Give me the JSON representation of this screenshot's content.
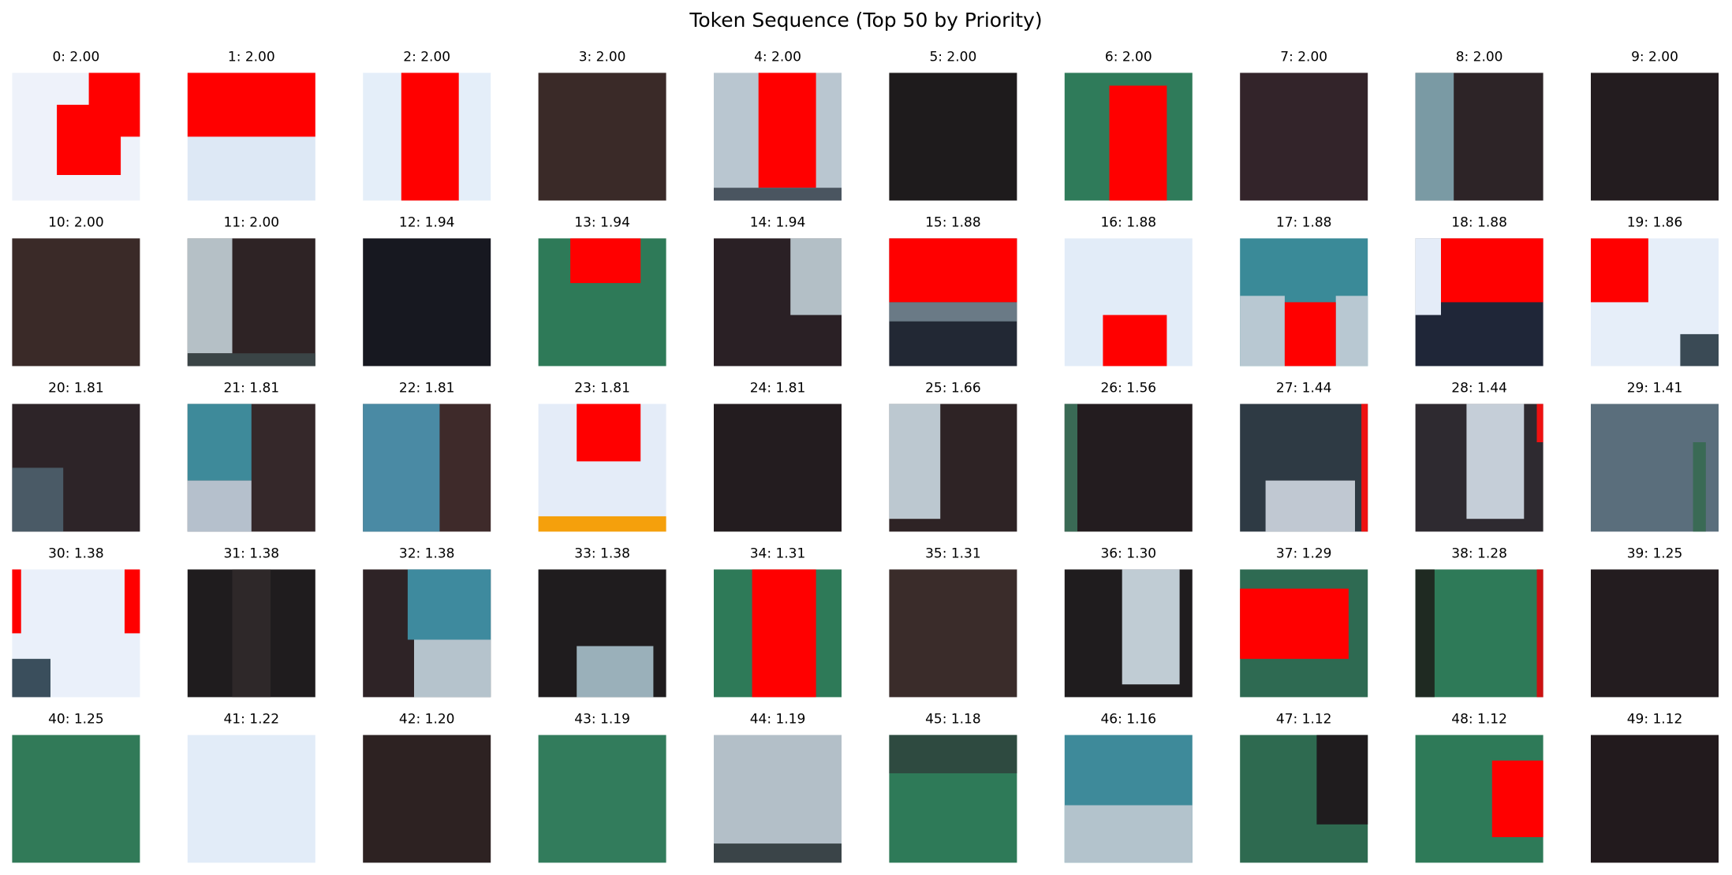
{
  "title": "Token Sequence (Top 50 by Priority)",
  "tiles": [
    "0: 2.00",
    "1: 2.00",
    "2: 2.00",
    "3: 2.00",
    "4: 2.00",
    "5: 2.00",
    "6: 2.00",
    "7: 2.00",
    "8: 2.00",
    "9: 2.00",
    "10: 2.00",
    "11: 2.00",
    "12: 1.94",
    "13: 1.94",
    "14: 1.94",
    "15: 1.88",
    "16: 1.88",
    "17: 1.88",
    "18: 1.88",
    "19: 1.86",
    "20: 1.81",
    "21: 1.81",
    "22: 1.81",
    "23: 1.81",
    "24: 1.81",
    "25: 1.66",
    "26: 1.56",
    "27: 1.44",
    "28: 1.44",
    "29: 1.41",
    "30: 1.38",
    "31: 1.38",
    "32: 1.38",
    "33: 1.38",
    "34: 1.31",
    "35: 1.31",
    "36: 1.30",
    "37: 1.29",
    "38: 1.28",
    "39: 1.25",
    "40: 1.25",
    "41: 1.22",
    "42: 1.20",
    "43: 1.19",
    "44: 1.19",
    "45: 1.18",
    "46: 1.16",
    "47: 1.12",
    "48: 1.12",
    "49: 1.12"
  ]
}
